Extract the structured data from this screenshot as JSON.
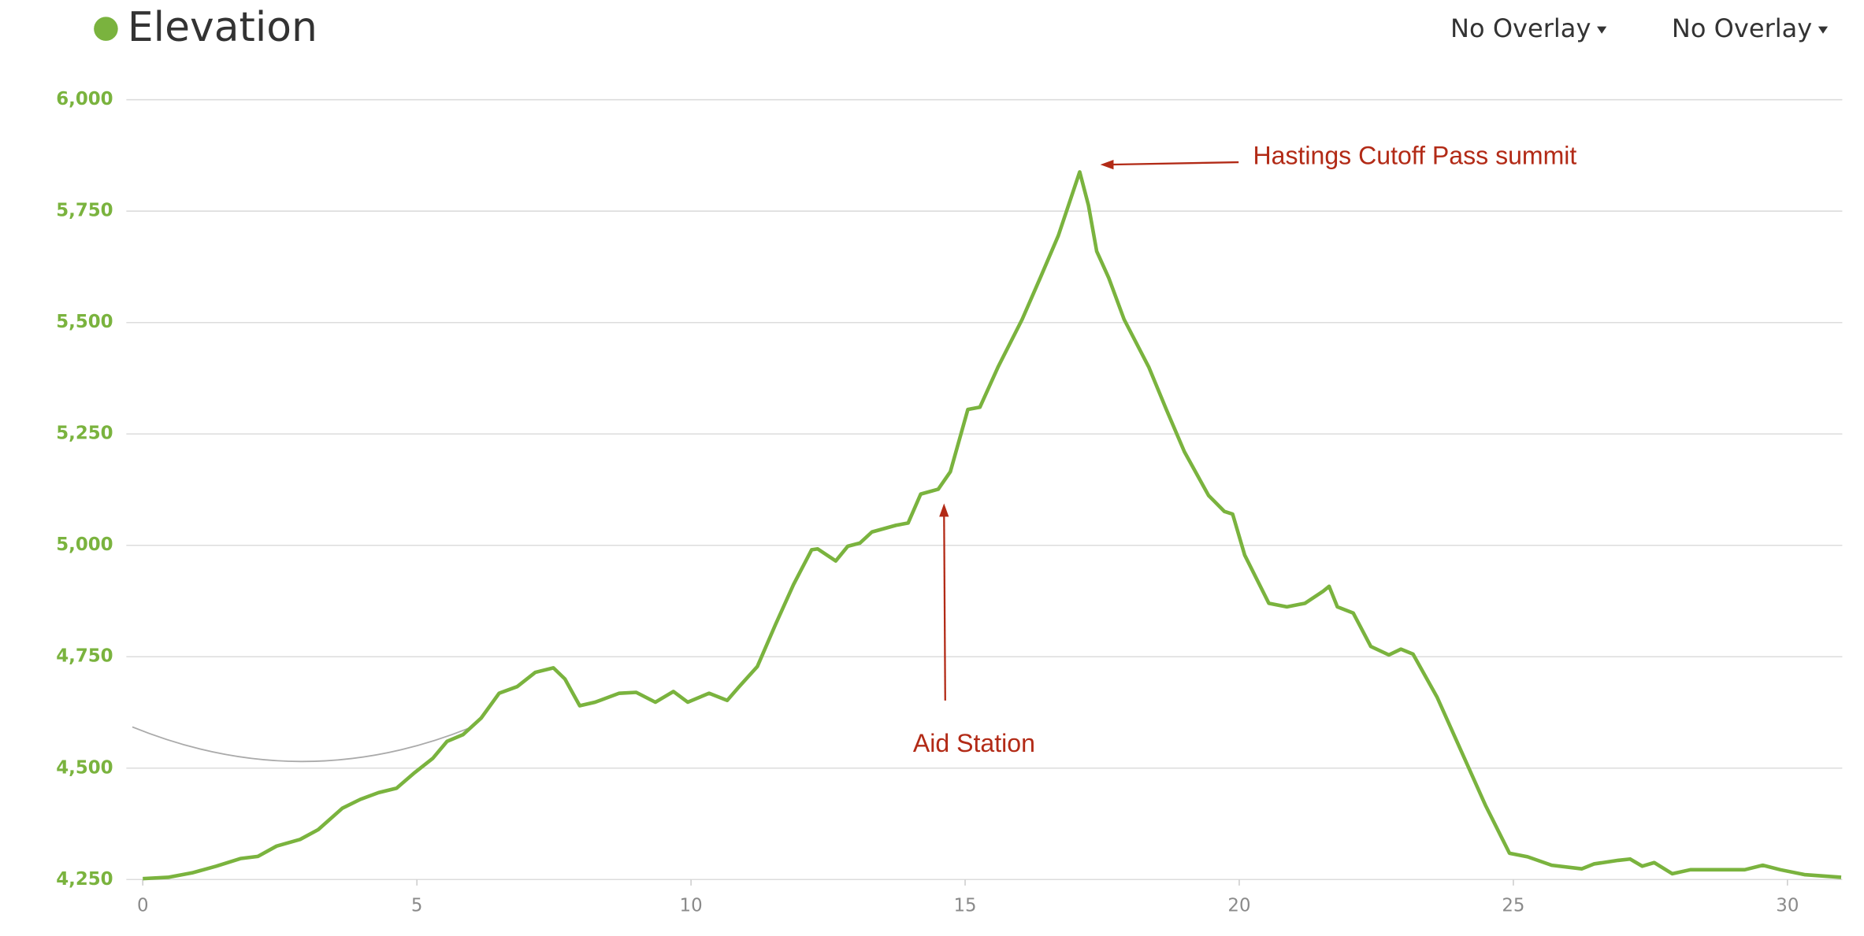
{
  "header": {
    "title": "Elevation",
    "overlays": [
      "No Overlay",
      "No Overlay"
    ]
  },
  "chart_data": {
    "type": "line",
    "annotations": [
      "Hastings Cutoff Pass summit",
      "Aid Station"
    ],
    "xlim": [
      -0.3,
      31
    ],
    "ylim": [
      4250,
      6000
    ],
    "xticks": [
      0,
      5,
      10,
      15,
      20,
      25,
      30
    ],
    "yticks": [
      {
        "value": 4250,
        "label": "4,250"
      },
      {
        "value": 4500,
        "label": "4,500"
      },
      {
        "value": 4750,
        "label": "4,750"
      },
      {
        "value": 5000,
        "label": "5,000"
      },
      {
        "value": 5250,
        "label": "5,250"
      },
      {
        "value": 5500,
        "label": "5,500"
      },
      {
        "value": 5750,
        "label": "5,750"
      },
      {
        "value": 6000,
        "label": "6,000"
      }
    ],
    "grid": true,
    "series": [
      {
        "color": "#7ab33e",
        "x": [
          0,
          0.46,
          0.9,
          1.34,
          1.78,
          2.1,
          2.44,
          2.87,
          3.2,
          3.64,
          3.97,
          4.3,
          4.63,
          4.96,
          5.29,
          5.55,
          5.84,
          6.17,
          6.5,
          6.83,
          7.16,
          7.49,
          7.7,
          7.97,
          8.25,
          8.69,
          9.0,
          9.35,
          9.68,
          9.94,
          10.33,
          10.66,
          10.88,
          11.21,
          11.54,
          11.87,
          12.2,
          12.31,
          12.64,
          12.86,
          13.08,
          13.3,
          13.74,
          13.96,
          14.19,
          14.51,
          14.73,
          15.05,
          15.27,
          15.6,
          16.04,
          16.37,
          16.7,
          17.09,
          17.25,
          17.4,
          17.62,
          17.9,
          18.35,
          18.67,
          19.0,
          19.44,
          19.73,
          19.88,
          20.1,
          20.54,
          20.87,
          21.2,
          21.53,
          21.64,
          21.79,
          22.08,
          22.4,
          22.73,
          22.95,
          23.17,
          23.61,
          24.05,
          24.49,
          24.93,
          25.26,
          25.7,
          26.25,
          26.47,
          26.91,
          27.13,
          27.35,
          27.57,
          27.9,
          28.23,
          29.22,
          29.55,
          29.87,
          30.31,
          30.98
        ],
        "values": [
          4252,
          4255,
          4265,
          4280,
          4297,
          4302,
          4325,
          4340,
          4362,
          4410,
          4430,
          4445,
          4455,
          4490,
          4522,
          4560,
          4575,
          4612,
          4668,
          4683,
          4715,
          4725,
          4700,
          4640,
          4648,
          4668,
          4670,
          4648,
          4672,
          4648,
          4668,
          4652,
          4683,
          4728,
          4822,
          4912,
          4990,
          4992,
          4965,
          4998,
          5005,
          5030,
          5045,
          5050,
          5115,
          5126,
          5165,
          5305,
          5310,
          5400,
          5507,
          5600,
          5695,
          5838,
          5763,
          5660,
          5600,
          5507,
          5400,
          5305,
          5210,
          5112,
          5076,
          5070,
          4978,
          4870,
          4862,
          4870,
          4897,
          4908,
          4862,
          4848,
          4773,
          4754,
          4767,
          4756,
          4659,
          4538,
          4417,
          4309,
          4301,
          4282,
          4274,
          4285,
          4293,
          4296,
          4280,
          4288,
          4263,
          4272,
          4272,
          4282,
          4272,
          4261,
          4255
        ]
      }
    ]
  }
}
